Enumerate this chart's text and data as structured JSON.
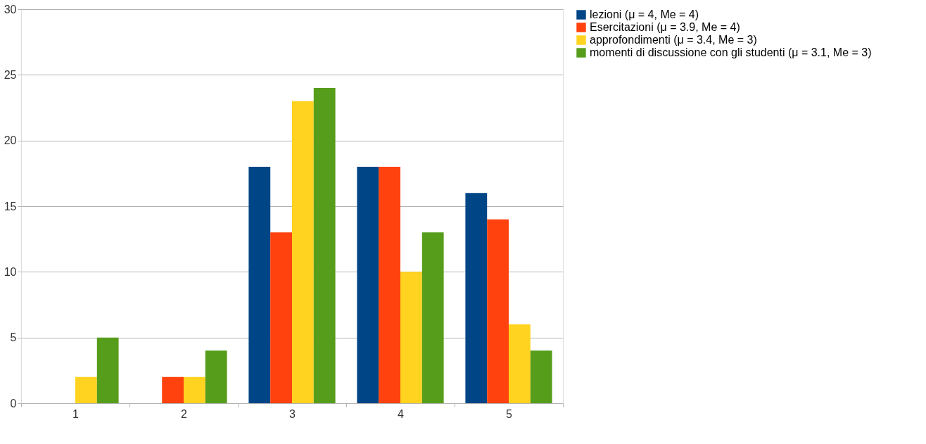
{
  "chart_data": {
    "type": "bar",
    "categories": [
      "1",
      "2",
      "3",
      "4",
      "5"
    ],
    "series": [
      {
        "name": "lezioni (μ = 4, Me = 4)",
        "color": "#004586",
        "values": [
          0,
          0,
          18,
          18,
          16
        ]
      },
      {
        "name": "Esercitazioni (μ = 3.9, Me = 4)",
        "color": "#ff420e",
        "values": [
          0,
          2,
          13,
          18,
          14
        ]
      },
      {
        "name": "approfondimenti (μ = 3.4, Me = 3)",
        "color": "#ffd320",
        "values": [
          2,
          2,
          23,
          10,
          6
        ]
      },
      {
        "name": "momenti di discussione con gli studenti (μ = 3.1, Me = 3)",
        "color": "#579d1c",
        "values": [
          5,
          4,
          24,
          13,
          4
        ]
      }
    ],
    "ylim": [
      0,
      30
    ],
    "yticks": [
      0,
      5,
      10,
      15,
      20,
      25,
      30
    ],
    "grid": "y",
    "legend": "right"
  }
}
